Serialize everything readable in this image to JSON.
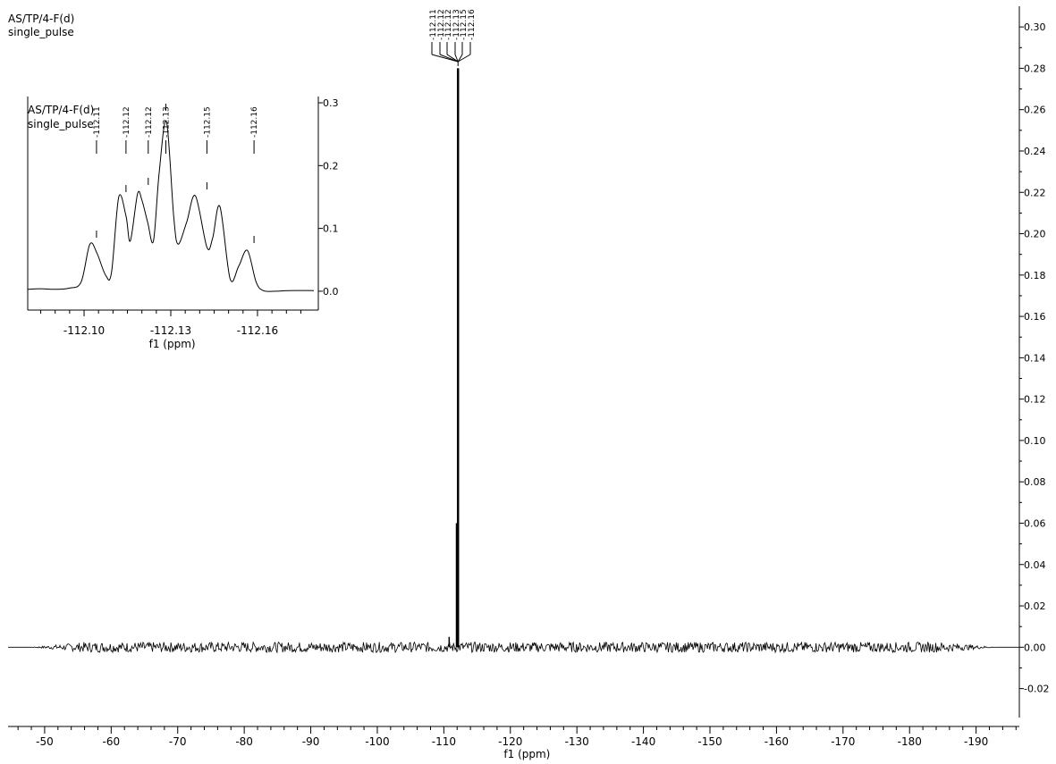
{
  "header": {
    "line1": "AS/TP/4-F(d)",
    "line2": "single_pulse"
  },
  "chart_data": [
    {
      "type": "line",
      "title": "AS/TP/4-F(d)",
      "subtitle": "single_pulse",
      "xlabel": "f1 (ppm)",
      "ylabel": "",
      "xlim": [
        -44.5,
        -196.5
      ],
      "ylim": [
        -0.034,
        0.31
      ],
      "x_reversed": true,
      "x_ticks": [
        -50,
        -60,
        -70,
        -80,
        -90,
        -100,
        -110,
        -120,
        -130,
        -140,
        -150,
        -160,
        -170,
        -180,
        -190
      ],
      "x_tick_labels": [
        "-50",
        "-60",
        "-70",
        "-80",
        "-90",
        "-100",
        "-110",
        "-120",
        "-130",
        "-140",
        "-150",
        "-160",
        "-170",
        "-180",
        "-190"
      ],
      "y_ticks": [
        -0.02,
        0.0,
        0.02,
        0.04,
        0.06,
        0.08,
        0.1,
        0.12,
        0.14,
        0.16,
        0.18,
        0.2,
        0.22,
        0.24,
        0.26,
        0.28,
        0.3
      ],
      "y_tick_labels": [
        "-0.02",
        "0.00",
        "0.02",
        "0.04",
        "0.06",
        "0.08",
        "0.10",
        "0.12",
        "0.14",
        "0.16",
        "0.18",
        "0.20",
        "0.22",
        "0.24",
        "0.26",
        "0.28",
        "0.30"
      ],
      "y_axis_side": "right",
      "grid": false,
      "noise_amplitude": 0.0025,
      "series": [
        {
          "values": [
            {
              "x": -110.8,
              "y": 0.005
            },
            {
              "x": -111.9,
              "y": 0.06
            },
            {
              "x": -112.13,
              "y": 0.28
            }
          ]
        }
      ],
      "peak_labels": [
        "-112.11",
        "-112.12",
        "-112.12",
        "-112.13",
        "-112.15",
        "-112.16"
      ]
    },
    {
      "type": "line",
      "title": "AS/TP/4-F(d)",
      "subtitle": "single_pulse",
      "xlabel": "f1 (ppm)",
      "ylabel": "",
      "xlim": [
        -112.0805,
        -112.1795
      ],
      "ylim": [
        -0.03,
        0.31
      ],
      "x_reversed": true,
      "x_ticks": [
        -112.1,
        -112.13,
        -112.16
      ],
      "x_tick_labels": [
        "-112.10",
        "-112.13",
        "-112.16"
      ],
      "y_ticks": [
        0.0,
        0.1,
        0.2,
        0.3
      ],
      "y_tick_labels": [
        "0.0",
        "0.1",
        "0.2",
        "0.3"
      ],
      "y_axis_side": "right",
      "grid": false,
      "series": [
        {
          "x": [
            -112.0805,
            -112.085,
            -112.09,
            -112.095,
            -112.099,
            -112.102,
            -112.1045,
            -112.1075,
            -112.1095,
            -112.112,
            -112.1145,
            -112.116,
            -112.1185,
            -112.12,
            -112.122,
            -112.124,
            -112.126,
            -112.1285,
            -112.131,
            -112.1325,
            -112.1355,
            -112.1385,
            -112.1425,
            -112.1445,
            -112.147,
            -112.1505,
            -112.1535,
            -112.1565,
            -112.1595,
            -112.162,
            -112.1665,
            -112.1705,
            -112.1795
          ],
          "y": [
            0.003,
            0.004,
            0.003,
            0.005,
            0.015,
            0.075,
            0.06,
            0.025,
            0.03,
            0.15,
            0.12,
            0.08,
            0.155,
            0.145,
            0.11,
            0.08,
            0.19,
            0.27,
            0.12,
            0.075,
            0.11,
            0.152,
            0.07,
            0.085,
            0.135,
            0.02,
            0.04,
            0.065,
            0.015,
            0.001,
            0.0,
            0.001,
            0.001
          ]
        }
      ],
      "peaks": [
        -112.1043,
        -112.1145,
        -112.1222,
        -112.1283,
        -112.1425,
        -112.1588
      ],
      "peak_labels": [
        "-112.11",
        "-112.12",
        "-112.12",
        "-112.13",
        "-112.15",
        "-112.16"
      ]
    }
  ]
}
